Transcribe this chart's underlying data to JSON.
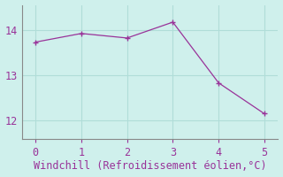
{
  "x": [
    0,
    1,
    2,
    3,
    4,
    5
  ],
  "y": [
    13.73,
    13.92,
    13.82,
    14.17,
    12.83,
    12.15
  ],
  "line_color": "#993399",
  "marker_color": "#993399",
  "bg_color": "#cff0ec",
  "grid_color": "#b0ddd8",
  "xlabel": "Windchill (Refroidissement éolien,°C)",
  "xlabel_color": "#993399",
  "xlim": [
    -0.3,
    5.3
  ],
  "ylim": [
    11.6,
    14.55
  ],
  "xticks": [
    0,
    1,
    2,
    3,
    4,
    5
  ],
  "yticks": [
    12,
    13,
    14
  ],
  "tick_color": "#993399",
  "spine_color": "#888888",
  "xlabel_fontsize": 8.5,
  "tick_fontsize": 8.5
}
